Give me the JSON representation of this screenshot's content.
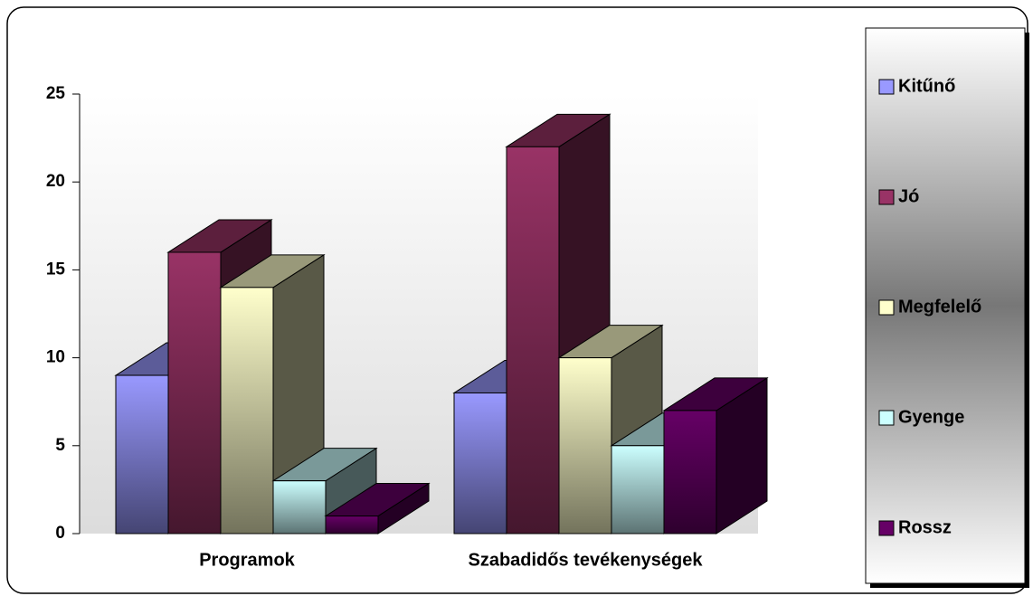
{
  "chart_data": {
    "type": "bar3d",
    "categories": [
      "Programok",
      "Szabadidős tevékenységek"
    ],
    "series": [
      {
        "name": "Kitűnő",
        "color": "#9999ff",
        "values": [
          9,
          8
        ]
      },
      {
        "name": "Jó",
        "color": "#993366",
        "values": [
          16,
          22
        ]
      },
      {
        "name": "Megfelelő",
        "color": "#ffffcc",
        "values": [
          14,
          10
        ]
      },
      {
        "name": "Gyenge",
        "color": "#ccffff",
        "values": [
          3,
          5
        ]
      },
      {
        "name": "Rossz",
        "color": "#660066",
        "values": [
          1,
          7
        ]
      }
    ],
    "ylim": [
      0,
      25
    ],
    "yticks": [
      0,
      5,
      10,
      15,
      20,
      25
    ],
    "legend": "right"
  }
}
